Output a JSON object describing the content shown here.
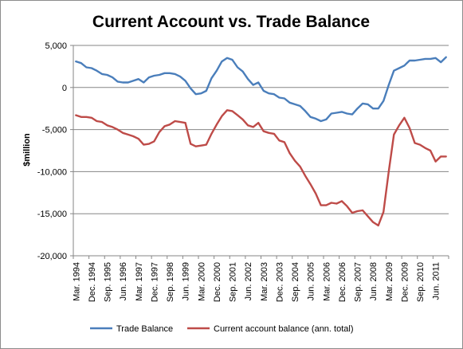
{
  "chart_data": {
    "type": "line",
    "title": "Current Account vs. Trade Balance",
    "xlabel": "",
    "ylabel": "$million",
    "ylim": [
      -20000,
      5000
    ],
    "yticks": [
      "5,000",
      "0",
      "-5,000",
      "-10,000",
      "-15,000",
      "-20,000"
    ],
    "grid": true,
    "legend": "bottom",
    "colors": {
      "trade": "#4a7ebb",
      "current": "#be4b48",
      "grid": "#868686"
    },
    "categories": [
      "Mar. 1994",
      "Jun. 1994",
      "Sep. 1994",
      "Dec. 1994",
      "Mar. 1995",
      "Jun. 1995",
      "Sep. 1995",
      "Dec. 1995",
      "Mar. 1996",
      "Jun. 1996",
      "Sep. 1996",
      "Dec. 1996",
      "Mar. 1997",
      "Jun. 1997",
      "Sep. 1997",
      "Dec. 1997",
      "Mar. 1998",
      "Jun. 1998",
      "Sep. 1998",
      "Dec. 1998",
      "Mar. 1999",
      "Jun. 1999",
      "Sep. 1999",
      "Dec. 1999",
      "Mar. 2000",
      "Jun. 2000",
      "Sep. 2000",
      "Dec. 2000",
      "Mar. 2001",
      "Jun. 2001",
      "Sep. 2001",
      "Dec. 2001",
      "Mar. 2002",
      "Jun. 2002",
      "Sep. 2002",
      "Dec. 2002",
      "Mar. 2003",
      "Jun. 2003",
      "Sep. 2003",
      "Dec. 2003",
      "Mar. 2004",
      "Jun. 2004",
      "Sep. 2004",
      "Dec. 2004",
      "Mar. 2005",
      "Jun. 2005",
      "Sep. 2005",
      "Dec. 2005",
      "Mar. 2006",
      "Jun. 2006",
      "Sep. 2006",
      "Dec. 2006",
      "Mar. 2007",
      "Jun. 2007",
      "Sep. 2007",
      "Dec. 2007",
      "Mar. 2008",
      "Jun. 2008",
      "Sep. 2008",
      "Dec. 2008",
      "Mar. 2009",
      "Jun. 2009",
      "Sep. 2009",
      "Dec. 2009",
      "Mar. 2010",
      "Jun. 2010",
      "Sep. 2010",
      "Dec. 2010",
      "Mar. 2011",
      "Jun. 2011",
      "Sep. 2011",
      "Dec. 2011"
    ],
    "xtick_labels": [
      "Mar. 1994",
      "Dec. 1994",
      "Sep. 1995",
      "Jun. 1996",
      "Mar. 1997",
      "Dec. 1997",
      "Sep. 1998",
      "Jun. 1999",
      "Mar. 2000",
      "Dec. 2000",
      "Sep. 2001",
      "Jun. 2002",
      "Mar. 2003",
      "Dec. 2003",
      "Sep. 2004",
      "Jun. 2005",
      "Mar. 2006",
      "Dec. 2006",
      "Sep. 2007",
      "Jun. 2008",
      "Mar. 2009",
      "Dec. 2009",
      "Sep. 2010",
      "Jun. 2011"
    ],
    "series": [
      {
        "name": "Trade Balance",
        "color": "#4a7ebb",
        "values": [
          3100,
          2900,
          2400,
          2300,
          2000,
          1600,
          1500,
          1200,
          700,
          600,
          600,
          800,
          1000,
          600,
          1200,
          1400,
          1500,
          1700,
          1700,
          1600,
          1300,
          800,
          -100,
          -800,
          -700,
          -400,
          1100,
          2000,
          3100,
          3500,
          3300,
          2400,
          1900,
          1000,
          300,
          600,
          -400,
          -700,
          -800,
          -1200,
          -1300,
          -1800,
          -2000,
          -2200,
          -2800,
          -3500,
          -3700,
          -4000,
          -3800,
          -3100,
          -3000,
          -2900,
          -3100,
          -3200,
          -2500,
          -1900,
          -2000,
          -2500,
          -2500,
          -1600,
          300,
          2000,
          2300,
          2600,
          3200,
          3200,
          3300,
          3400,
          3400,
          3500,
          3000,
          3600
        ]
      },
      {
        "name": "Current account balance (ann. total)",
        "color": "#be4b48",
        "values": [
          -3300,
          -3500,
          -3500,
          -3600,
          -4000,
          -4100,
          -4500,
          -4700,
          -5000,
          -5400,
          -5600,
          -5800,
          -6100,
          -6800,
          -6700,
          -6400,
          -5300,
          -4600,
          -4400,
          -4000,
          -4100,
          -4200,
          -6700,
          -7000,
          -6900,
          -6800,
          -5500,
          -4400,
          -3400,
          -2700,
          -2800,
          -3300,
          -3800,
          -4500,
          -4700,
          -4200,
          -5200,
          -5400,
          -5500,
          -6300,
          -6500,
          -7800,
          -8700,
          -9400,
          -10500,
          -11500,
          -12600,
          -14000,
          -14000,
          -13700,
          -13800,
          -13500,
          -14100,
          -14900,
          -14700,
          -14600,
          -15300,
          -16000,
          -16400,
          -14800,
          -10000,
          -5600,
          -4500,
          -3600,
          -4800,
          -6600,
          -6800,
          -7200,
          -7500,
          -8800,
          -8200,
          -8200
        ]
      }
    ]
  }
}
